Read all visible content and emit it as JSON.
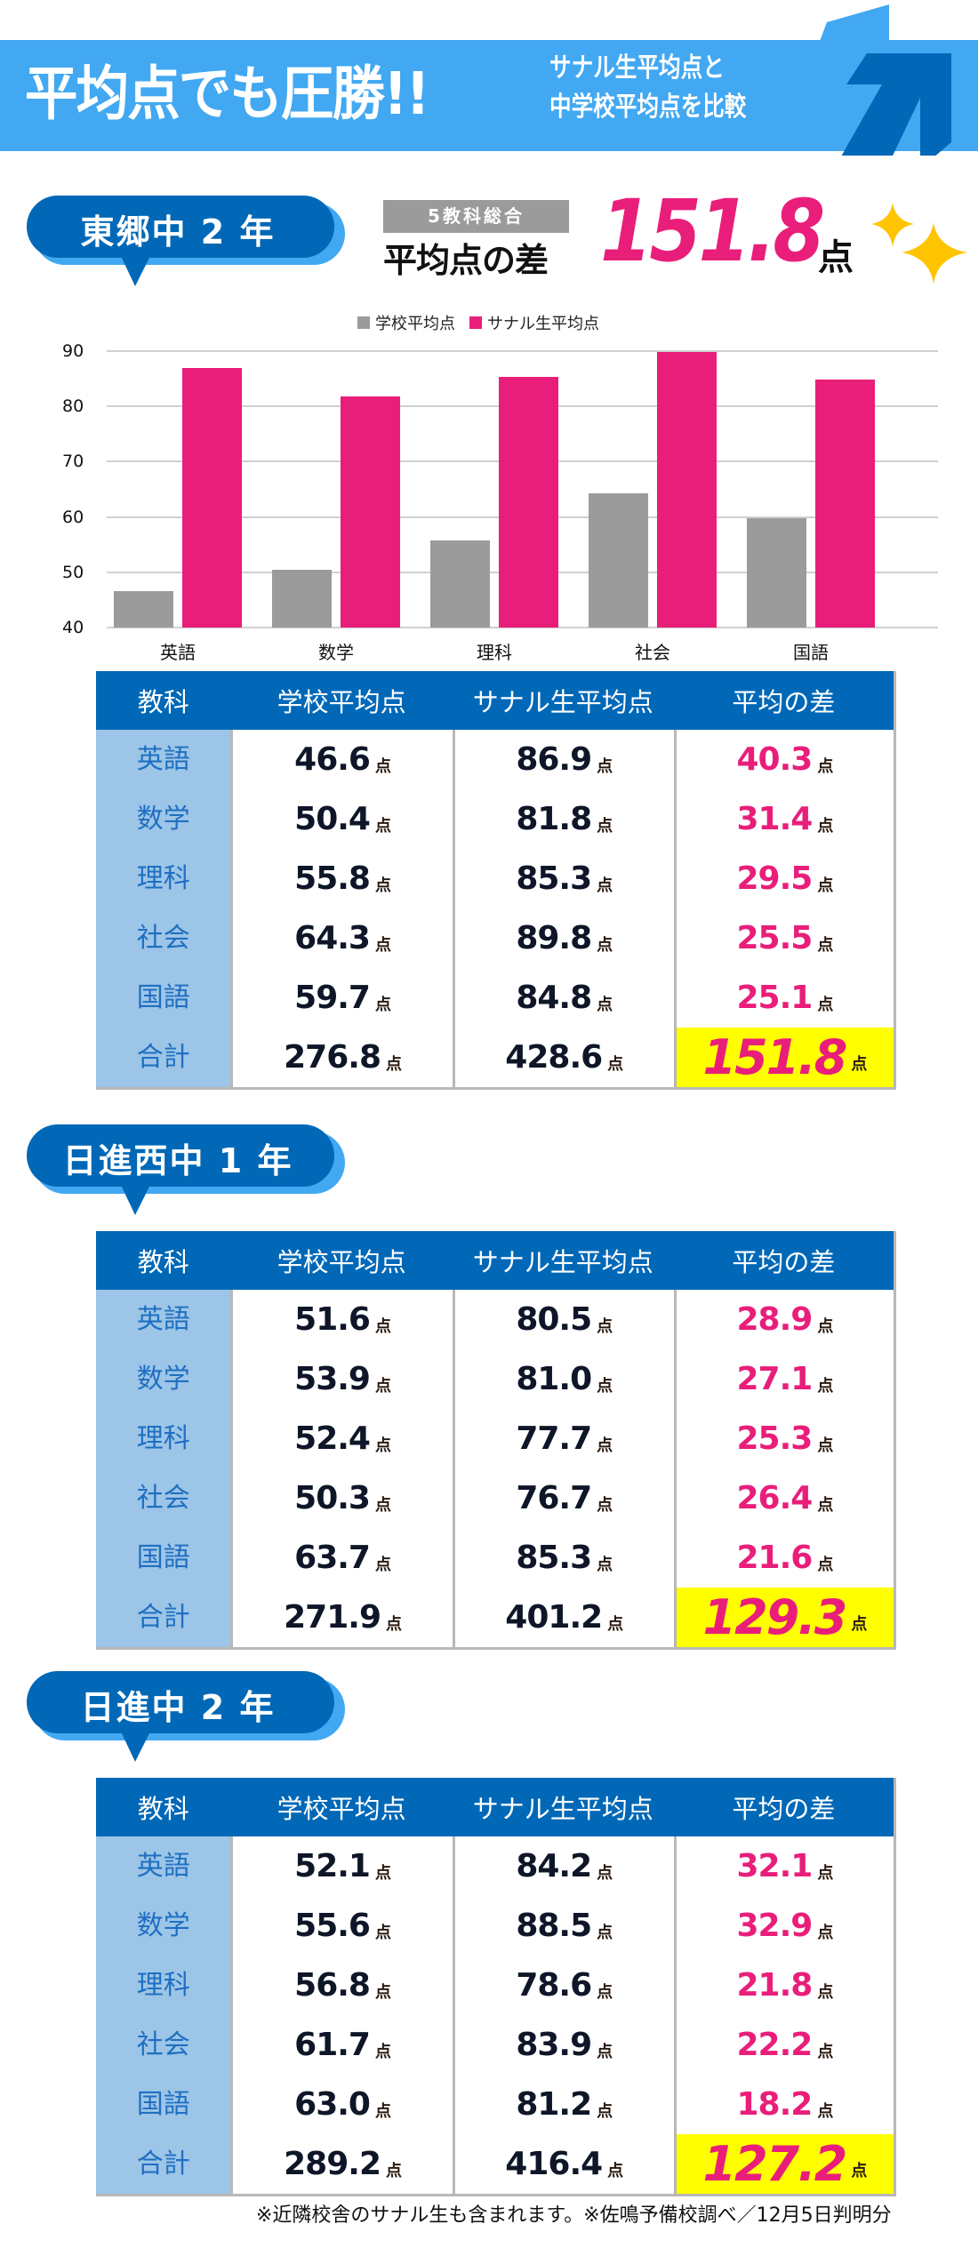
{
  "banner": {
    "title": "平均点でも圧勝!!",
    "subtitle_line1": "サナル生平均点と",
    "subtitle_line2": "中学校平均点を比較",
    "colors": {
      "background": "#42A8F2",
      "arrow": "#0068B7",
      "arrow_shadow": "#42A8F2"
    }
  },
  "summary": {
    "tag": "5教科総合",
    "label": "平均点の差",
    "value": "151.8",
    "unit": "点",
    "icon": "sparkle-icon"
  },
  "colors": {
    "brand_blue": "#0068B7",
    "light_blue": "#42A8F2",
    "subject_cell": "#9CC5E7",
    "pink": "#E91E7A",
    "gray": "#9B9B9B",
    "highlight": "#FFFF00"
  },
  "chart_data": {
    "type": "bar",
    "title": "",
    "xlabel": "",
    "ylabel": "",
    "categories": [
      "英語",
      "数学",
      "理科",
      "社会",
      "国語"
    ],
    "series": [
      {
        "name": "学校平均点",
        "color": "#9B9B9B",
        "values": [
          46.6,
          50.4,
          55.8,
          64.3,
          59.7
        ]
      },
      {
        "name": "サナル生平均点",
        "color": "#E91E7A",
        "values": [
          86.9,
          81.8,
          85.3,
          89.8,
          84.8
        ]
      }
    ],
    "ylim": [
      40,
      90
    ],
    "yticks": [
      90,
      80,
      70,
      60,
      50,
      40
    ],
    "grid": true,
    "legend_position": "top"
  },
  "columns": [
    "教科",
    "学校平均点",
    "サナル生平均点",
    "平均の差"
  ],
  "unit": "点",
  "sections": [
    {
      "school": "東郷中 2 年",
      "rows": [
        {
          "subject": "英語",
          "school_avg": "46.6",
          "sanaru_avg": "86.9",
          "diff": "40.3"
        },
        {
          "subject": "数学",
          "school_avg": "50.4",
          "sanaru_avg": "81.8",
          "diff": "31.4"
        },
        {
          "subject": "理科",
          "school_avg": "55.8",
          "sanaru_avg": "85.3",
          "diff": "29.5"
        },
        {
          "subject": "社会",
          "school_avg": "64.3",
          "sanaru_avg": "89.8",
          "diff": "25.5"
        },
        {
          "subject": "国語",
          "school_avg": "59.7",
          "sanaru_avg": "84.8",
          "diff": "25.1"
        }
      ],
      "total": {
        "subject": "合計",
        "school_avg": "276.8",
        "sanaru_avg": "428.6",
        "diff": "151.8"
      }
    },
    {
      "school": "日進西中 1 年",
      "rows": [
        {
          "subject": "英語",
          "school_avg": "51.6",
          "sanaru_avg": "80.5",
          "diff": "28.9"
        },
        {
          "subject": "数学",
          "school_avg": "53.9",
          "sanaru_avg": "81.0",
          "diff": "27.1"
        },
        {
          "subject": "理科",
          "school_avg": "52.4",
          "sanaru_avg": "77.7",
          "diff": "25.3"
        },
        {
          "subject": "社会",
          "school_avg": "50.3",
          "sanaru_avg": "76.7",
          "diff": "26.4"
        },
        {
          "subject": "国語",
          "school_avg": "63.7",
          "sanaru_avg": "85.3",
          "diff": "21.6"
        }
      ],
      "total": {
        "subject": "合計",
        "school_avg": "271.9",
        "sanaru_avg": "401.2",
        "diff": "129.3"
      }
    },
    {
      "school": "日進中 2 年",
      "rows": [
        {
          "subject": "英語",
          "school_avg": "52.1",
          "sanaru_avg": "84.2",
          "diff": "32.1"
        },
        {
          "subject": "数学",
          "school_avg": "55.6",
          "sanaru_avg": "88.5",
          "diff": "32.9"
        },
        {
          "subject": "理科",
          "school_avg": "56.8",
          "sanaru_avg": "78.6",
          "diff": "21.8"
        },
        {
          "subject": "社会",
          "school_avg": "61.7",
          "sanaru_avg": "83.9",
          "diff": "22.2"
        },
        {
          "subject": "国語",
          "school_avg": "63.0",
          "sanaru_avg": "81.2",
          "diff": "18.2"
        }
      ],
      "total": {
        "subject": "合計",
        "school_avg": "289.2",
        "sanaru_avg": "416.4",
        "diff": "127.2"
      }
    }
  ],
  "footer": "※近隣校舎のサナル生も含まれます。※佐鳴予備校調べ／12月5日判明分"
}
